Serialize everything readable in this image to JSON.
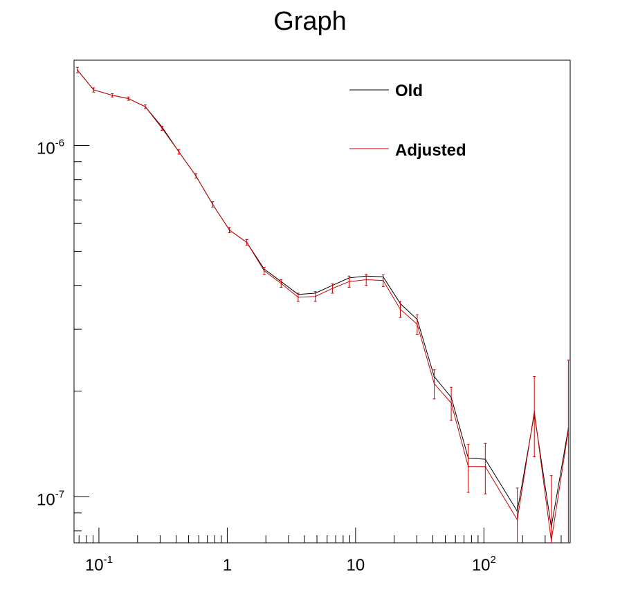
{
  "chart_data": {
    "type": "line",
    "title": "Graph",
    "xlabel": "",
    "ylabel": "",
    "x_scale": "log",
    "y_scale": "log",
    "xlim": [
      0.064,
      470
    ],
    "ylim": [
      7.4e-08,
      1.75e-06
    ],
    "grid": false,
    "legend_position": "top-right",
    "x_ticks": [
      {
        "value": 0.1,
        "base": "10",
        "exp": "-1"
      },
      {
        "value": 1,
        "base": "1",
        "exp": ""
      },
      {
        "value": 10,
        "base": "10",
        "exp": ""
      },
      {
        "value": 100,
        "base": "10",
        "exp": "2"
      }
    ],
    "y_ticks": [
      {
        "value": 1e-06,
        "base": "10",
        "exp": "-6"
      },
      {
        "value": 1e-07,
        "base": "10",
        "exp": "-7"
      }
    ],
    "x": [
      0.068,
      0.091,
      0.127,
      0.17,
      0.23,
      0.31,
      0.42,
      0.57,
      0.77,
      1.04,
      1.42,
      1.94,
      2.63,
      3.57,
      4.85,
      6.6,
      8.9,
      12.1,
      16.4,
      22.3,
      30.2,
      41,
      55.6,
      75.5,
      102.5,
      182,
      247,
      335,
      455
    ],
    "series": [
      {
        "name": "Old",
        "color": "#000000",
        "values": [
          1.64e-06,
          1.44e-06,
          1.39e-06,
          1.36e-06,
          1.29e-06,
          1.13e-06,
          9.6e-07,
          8.2e-07,
          6.8e-07,
          5.75e-07,
          5.3e-07,
          4.45e-07,
          4.1e-07,
          3.77e-07,
          3.8e-07,
          4e-07,
          4.2e-07,
          4.25e-07,
          4.23e-07,
          3.55e-07,
          3.2e-07,
          2.2e-07,
          1.92e-07,
          1.29e-07,
          1.28e-07,
          9.1e-08,
          1.72e-07,
          8.2e-08,
          1.57e-07
        ]
      },
      {
        "name": "Adjusted",
        "color": "#cc0000",
        "values": [
          1.64e-06,
          1.44e-06,
          1.39e-06,
          1.36e-06,
          1.29e-06,
          1.12e-06,
          9.6e-07,
          8.2e-07,
          6.8e-07,
          5.75e-07,
          5.3e-07,
          4.4e-07,
          4.05e-07,
          3.7e-07,
          3.72e-07,
          3.92e-07,
          4.1e-07,
          4.15e-07,
          4.13e-07,
          3.42e-07,
          3.1e-07,
          2.1e-07,
          1.85e-07,
          1.22e-07,
          1.22e-07,
          8.6e-08,
          1.75e-07,
          7.5e-08,
          1.55e-07
        ],
        "errors": [
          3e-08,
          2e-08,
          1.5e-08,
          1.5e-08,
          1.5e-08,
          1.5e-08,
          1.5e-08,
          1.2e-08,
          1.2e-08,
          1e-08,
          1e-08,
          1e-08,
          1e-08,
          1e-08,
          1.2e-08,
          1.2e-08,
          1.5e-08,
          1.5e-08,
          1.6e-08,
          1.8e-08,
          2e-08,
          2e-08,
          2e-08,
          1.9e-08,
          2e-08,
          2e-08,
          4.5e-08,
          4e-08,
          9e-08
        ]
      }
    ]
  }
}
